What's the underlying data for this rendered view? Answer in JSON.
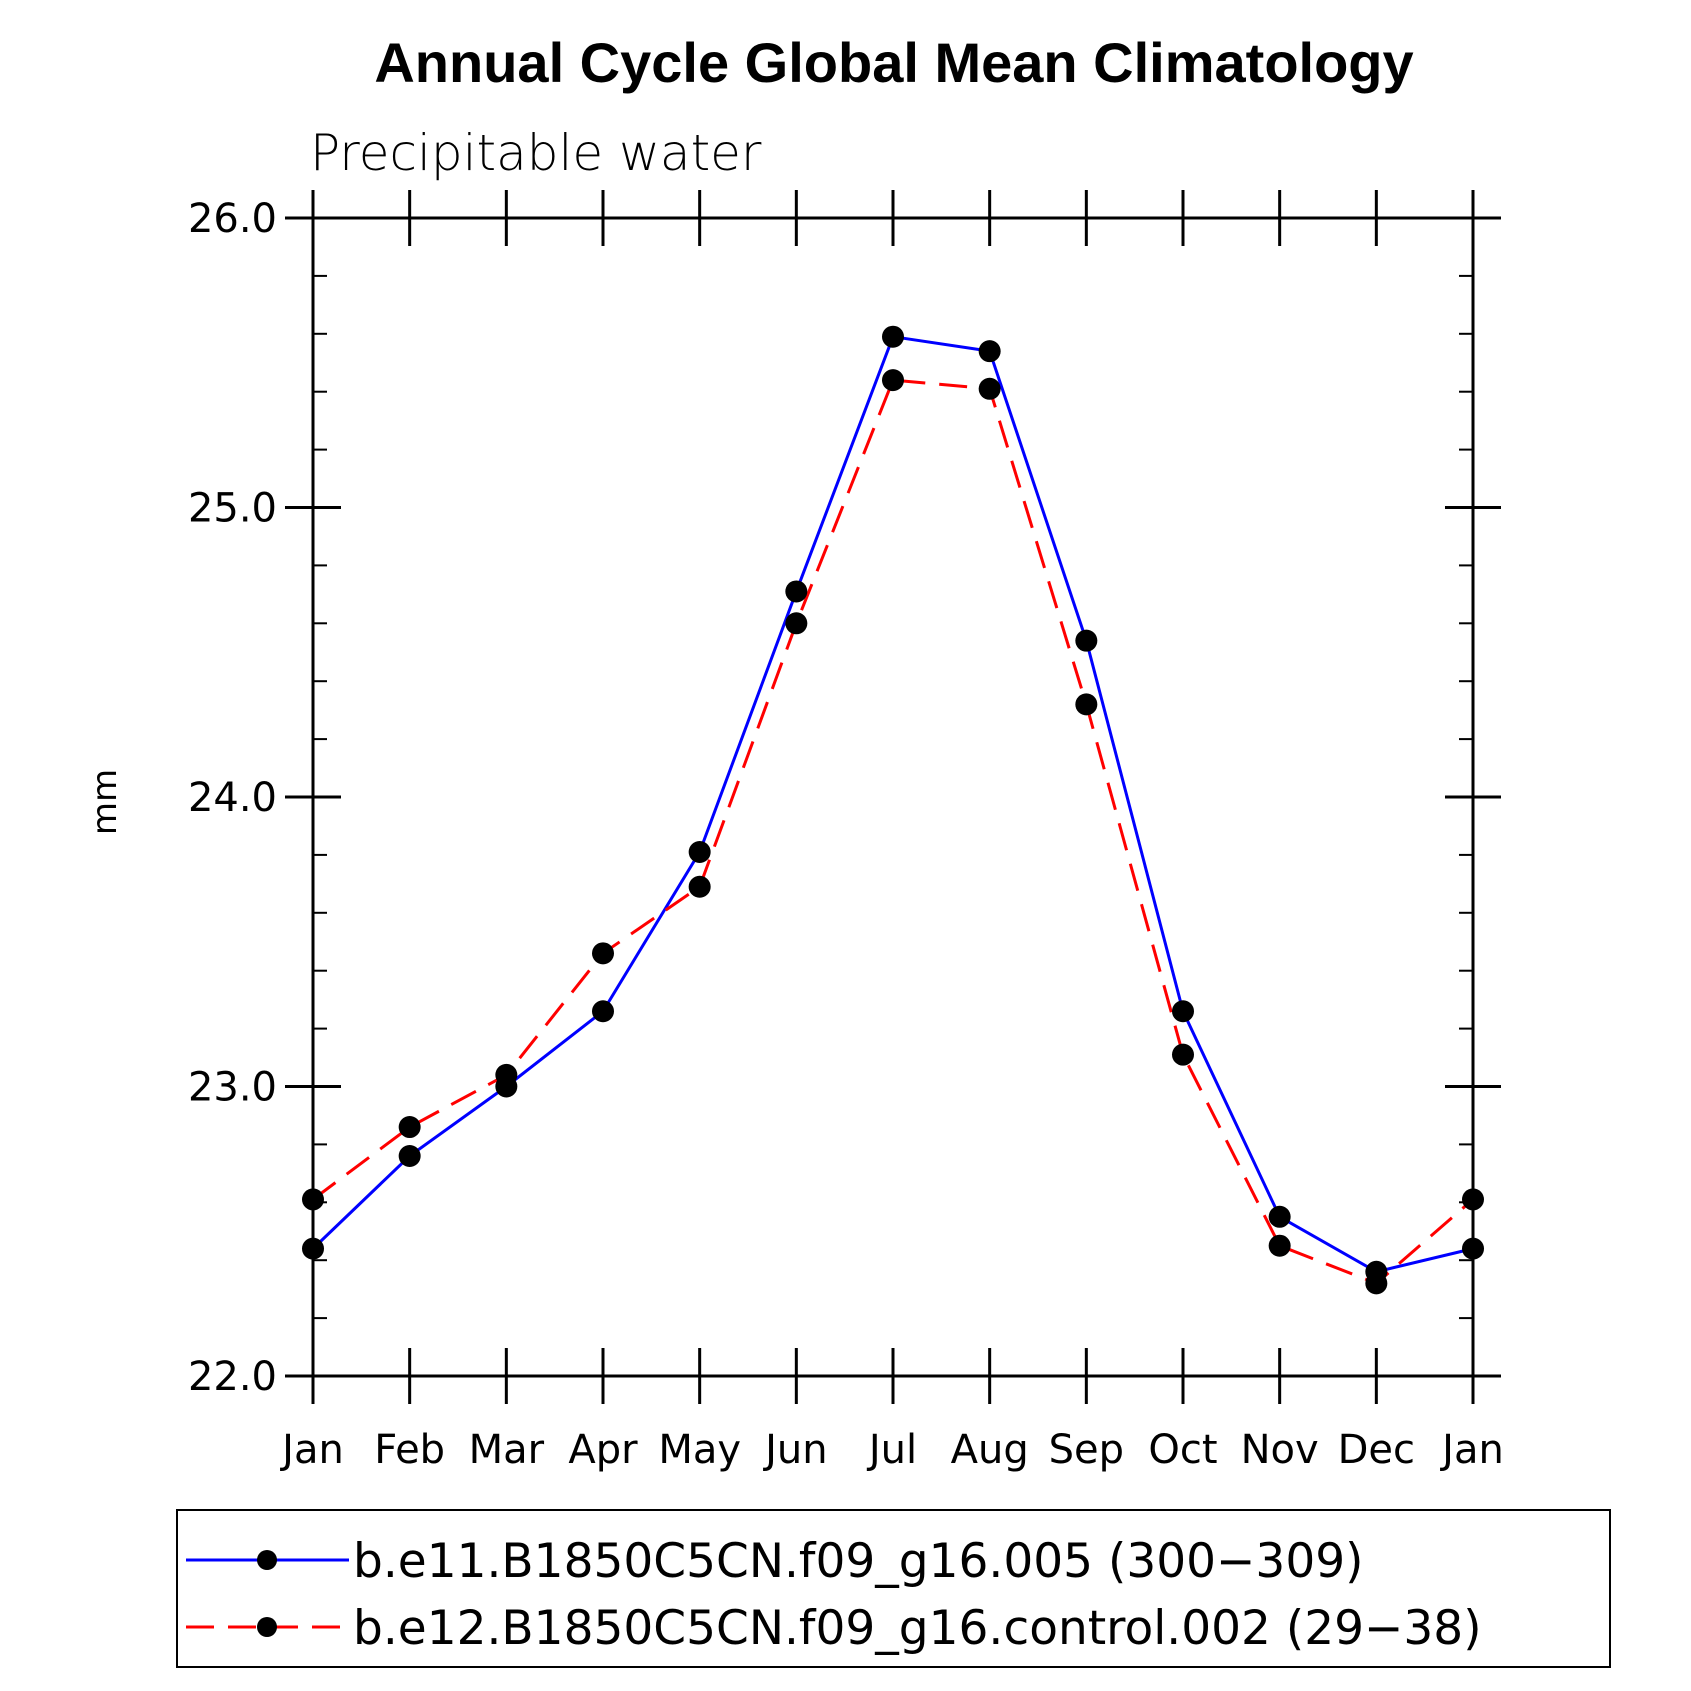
{
  "chart_data": {
    "type": "line",
    "title": "Annual Cycle Global Mean Climatology",
    "subtitle": "Precipitable water",
    "xlabel": "",
    "ylabel": "mm",
    "categories": [
      "Jan",
      "Feb",
      "Mar",
      "Apr",
      "May",
      "Jun",
      "Jul",
      "Aug",
      "Sep",
      "Oct",
      "Nov",
      "Dec",
      "Jan"
    ],
    "ylim": [
      22.0,
      26.0
    ],
    "yticks": [
      "22.0",
      "23.0",
      "24.0",
      "25.0",
      "26.0"
    ],
    "grid": false,
    "legend_position": "bottom",
    "series": [
      {
        "name": "b.e11.B1850C5CN.f09_g16.005 (300−309)",
        "color": "#0000ff",
        "dash": "solid",
        "marker": "filled-circle",
        "values": [
          22.44,
          22.76,
          23.0,
          23.26,
          23.81,
          24.71,
          25.59,
          25.54,
          24.54,
          23.26,
          22.55,
          22.36,
          22.44
        ]
      },
      {
        "name": "b.e12.B1850C5CN.f09_g16.control.002 (29−38)",
        "color": "#ff0000",
        "dash": "dashed",
        "marker": "filled-circle",
        "values": [
          22.61,
          22.86,
          23.04,
          23.46,
          23.69,
          24.6,
          25.44,
          25.41,
          24.32,
          23.11,
          22.45,
          22.32,
          22.61
        ]
      }
    ]
  }
}
